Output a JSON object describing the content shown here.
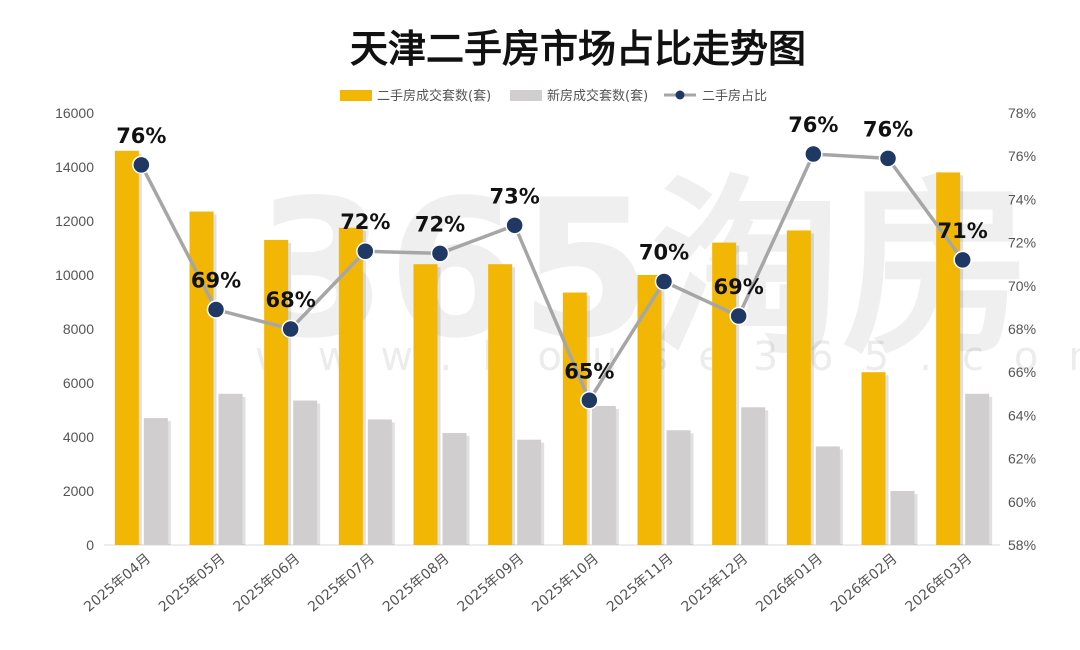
{
  "chart_data": {
    "type": "bar",
    "title": "天津二手房市场占比走势图",
    "categories": [
      "2025年04月",
      "2025年05月",
      "2025年06月",
      "2025年07月",
      "2025年08月",
      "2025年09月",
      "2025年10月",
      "2025年11月",
      "2025年12月",
      "2026年01月",
      "2026年02月",
      "2026年03月"
    ],
    "series": [
      {
        "name": "二手房成交套数(套)",
        "kind": "bar",
        "axis": "left",
        "color": "#F2B705",
        "values": [
          14600,
          12350,
          11300,
          11750,
          10400,
          10400,
          9350,
          10000,
          11200,
          11650,
          6400,
          13800
        ]
      },
      {
        "name": "新房成交套数(套)",
        "kind": "bar",
        "axis": "left",
        "color": "#D0CECE",
        "values": [
          4700,
          5600,
          5350,
          4650,
          4150,
          3900,
          5150,
          4250,
          5100,
          3650,
          2000,
          5600
        ]
      },
      {
        "name": "二手房占比",
        "kind": "line",
        "axis": "right",
        "color": "#A6A6A6",
        "marker_color": "#1F3864",
        "values": [
          75.6,
          68.9,
          68.0,
          71.6,
          71.5,
          72.8,
          64.7,
          70.2,
          68.6,
          76.1,
          75.9,
          71.2
        ],
        "labels": [
          "76%",
          "69%",
          "68%",
          "72%",
          "72%",
          "73%",
          "65%",
          "70%",
          "69%",
          "76%",
          "76%",
          "71%"
        ]
      }
    ],
    "y_left": {
      "min": 0,
      "max": 16000,
      "ticks": [
        "0",
        "2000",
        "4000",
        "6000",
        "8000",
        "10000",
        "12000",
        "14000",
        "16000"
      ]
    },
    "y_right": {
      "min": 58,
      "max": 78,
      "ticks": [
        "58%",
        "60%",
        "62%",
        "64%",
        "66%",
        "68%",
        "70%",
        "72%",
        "74%",
        "76%",
        "78%"
      ]
    },
    "legend_position": "top-center",
    "grid": false
  },
  "watermark": "365淘房"
}
